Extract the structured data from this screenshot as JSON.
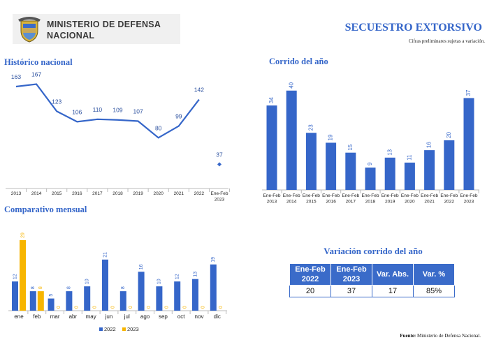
{
  "header": {
    "ministry": "MINISTERIO DE DEFENSA NACIONAL",
    "title": "SECUESTRO EXTORSIVO",
    "subtitle": "Cifras preliminares sujetas a variación."
  },
  "chart_data": [
    {
      "type": "line",
      "title": "Histórico nacional",
      "categories": [
        [
          "2013"
        ],
        [
          "2014"
        ],
        [
          "2015"
        ],
        [
          "2016"
        ],
        [
          "2017"
        ],
        [
          "2018"
        ],
        [
          "2019"
        ],
        [
          "2020"
        ],
        [
          "2021"
        ],
        [
          "2022"
        ],
        [
          "Ene-Feb",
          "2023"
        ]
      ],
      "series": [
        {
          "color": "#3566c9",
          "values": [
            163,
            167,
            123,
            106,
            110,
            109,
            107,
            80,
            99,
            142,
            null
          ]
        },
        {
          "color": "#3566c9",
          "values": [
            null,
            null,
            null,
            null,
            null,
            null,
            null,
            null,
            null,
            null,
            37
          ]
        }
      ],
      "ylim": [
        0,
        180
      ]
    },
    {
      "type": "bar",
      "title": "Corrido del año",
      "categories": [
        [
          "Ene-Feb",
          "2013"
        ],
        [
          "Ene-Feb",
          "2014"
        ],
        [
          "Ene-Feb",
          "2015"
        ],
        [
          "Ene-Feb",
          "2016"
        ],
        [
          "Ene-Feb",
          "2017"
        ],
        [
          "Ene-Feb",
          "2018"
        ],
        [
          "Ene-Feb",
          "2019"
        ],
        [
          "Ene-Feb",
          "2020"
        ],
        [
          "Ene-Feb",
          "2021"
        ],
        [
          "Ene-Feb",
          "2022"
        ],
        [
          "Ene-Feb",
          "2023"
        ]
      ],
      "series": [
        {
          "color": "#3566c9",
          "values": [
            34,
            40,
            23,
            19,
            15,
            9,
            13,
            11,
            16,
            20,
            37
          ]
        }
      ],
      "ylim": [
        0,
        45
      ]
    },
    {
      "type": "bar",
      "title": "Comparativo mensual",
      "categories": [
        [
          "ene"
        ],
        [
          "feb"
        ],
        [
          "mar"
        ],
        [
          "abr"
        ],
        [
          "may"
        ],
        [
          "jun"
        ],
        [
          "jul"
        ],
        [
          "ago"
        ],
        [
          "sep"
        ],
        [
          "oct"
        ],
        [
          "nov"
        ],
        [
          "dic"
        ]
      ],
      "series": [
        {
          "name": "2022",
          "color": "#3566c9",
          "values": [
            12,
            8,
            5,
            8,
            10,
            21,
            8,
            16,
            10,
            12,
            13,
            19
          ]
        },
        {
          "name": "2023",
          "color": "#f7b500",
          "values": [
            29,
            8,
            0,
            0,
            0,
            0,
            0,
            0,
            0,
            0,
            0,
            0
          ]
        }
      ],
      "ylim": [
        0,
        35
      ],
      "legend": "bottom"
    }
  ],
  "table": {
    "title": "Variación corrido del año",
    "header": [
      "Ene-Feb 2022",
      "Ene-Feb 2023",
      "Var. Abs.",
      "Var. %"
    ],
    "rows": [
      [
        "20",
        "37",
        "17",
        "85%"
      ]
    ]
  },
  "footer": {
    "label": "Fuente:",
    "text": "Ministerio de Defensa Nacional."
  }
}
